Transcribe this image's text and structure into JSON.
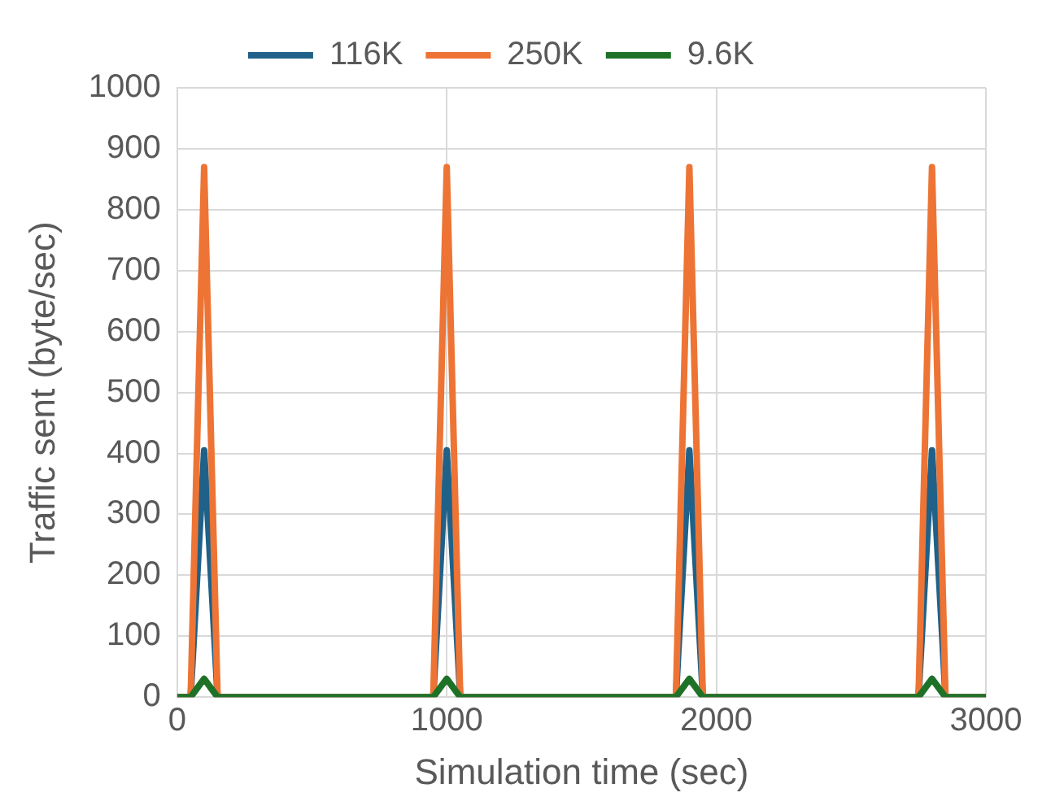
{
  "chart_data": {
    "type": "line",
    "xlabel": "Simulation time (sec)",
    "ylabel": "Traffic sent (byte/sec)",
    "x": [
      0,
      50,
      100,
      150,
      950,
      1000,
      1050,
      1850,
      1900,
      1950,
      2750,
      2800,
      2850,
      3000
    ],
    "series": [
      {
        "name": "116K",
        "color": "#1f6188",
        "values": [
          0,
          0,
          405,
          0,
          0,
          405,
          0,
          0,
          405,
          0,
          0,
          405,
          0,
          0
        ]
      },
      {
        "name": "250K",
        "color": "#ed7434",
        "values": [
          0,
          0,
          870,
          0,
          0,
          870,
          0,
          0,
          870,
          0,
          0,
          870,
          0,
          0
        ]
      },
      {
        "name": "9.6K",
        "color": "#1e7227",
        "values": [
          0,
          0,
          30,
          0,
          0,
          30,
          0,
          0,
          30,
          0,
          0,
          30,
          0,
          0
        ]
      }
    ],
    "xlim": [
      0,
      3000
    ],
    "xticks": [
      0,
      1000,
      2000,
      3000
    ],
    "ylim": [
      0,
      1000
    ],
    "yticks": [
      0,
      100,
      200,
      300,
      400,
      500,
      600,
      700,
      800,
      900,
      1000
    ],
    "grid": true,
    "legend": "top",
    "marker": "none",
    "line_style": "solid"
  }
}
